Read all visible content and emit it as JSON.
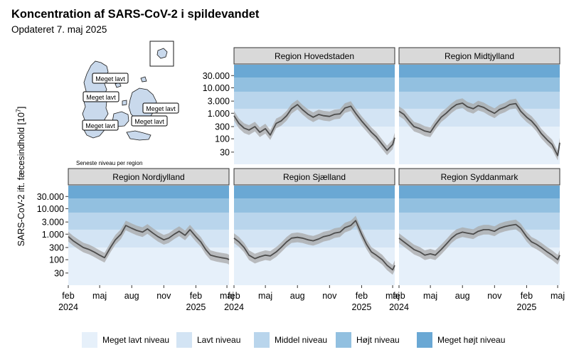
{
  "title": "Koncentration af SARS-CoV-2 i spildevandet",
  "subtitle": "Opdateret 7. maj 2025",
  "map": {
    "caption": "Seneste niveau per region",
    "labels": [
      "Meget lavt",
      "Meget lavt",
      "Meget lavt",
      "Meget lavt",
      "Meget lavt"
    ],
    "land_color": "#c9d9ec",
    "outline_color": "#1a1a1a"
  },
  "colors": {
    "levels": [
      "#e6f0fa",
      "#d3e4f4",
      "#b9d5ec",
      "#92c0e0",
      "#6aa8d4"
    ],
    "strip": "#d9d9d9",
    "line": "#4d4d4d",
    "ribbon": "#a8a8a8"
  },
  "legend": [
    "Meget lavt niveau",
    "Lavt niveau",
    "Middel niveau",
    "Højt niveau",
    "Meget højt niveau"
  ],
  "chart_data": {
    "type": "line",
    "ylabel": "SARS-CoV-2 ift. fæcesindhold [10",
    "ylabel_sup": "7",
    "ylabel_end": "]",
    "y_scale": "log",
    "ylim": [
      10,
      80000
    ],
    "yticks": [
      30,
      100,
      300,
      1000,
      3000,
      10000,
      30000
    ],
    "ytick_labels": [
      "30",
      "100",
      "300",
      "1.000",
      "3.000",
      "10.000",
      "30.000"
    ],
    "level_bands": [
      {
        "name": "Meget lavt niveau",
        "from": 10,
        "to": 300
      },
      {
        "name": "Lavt niveau",
        "from": 300,
        "to": 1500
      },
      {
        "name": "Middel niveau",
        "from": 1500,
        "to": 7000
      },
      {
        "name": "Højt niveau",
        "from": 7000,
        "to": 25000
      },
      {
        "name": "Meget højt niveau",
        "from": 25000,
        "to": 80000
      }
    ],
    "xlim": [
      "2024-02-01",
      "2025-05-07"
    ],
    "xticks": [
      {
        "date": "2024-02-01",
        "label": "feb",
        "year": "2024"
      },
      {
        "date": "2024-05-01",
        "label": "maj",
        "year": ""
      },
      {
        "date": "2024-08-01",
        "label": "aug",
        "year": ""
      },
      {
        "date": "2024-11-01",
        "label": "nov",
        "year": ""
      },
      {
        "date": "2025-02-01",
        "label": "feb",
        "year": "2025"
      },
      {
        "date": "2025-05-01",
        "label": "maj",
        "year": ""
      }
    ],
    "x": [
      "2024-02-01",
      "2024-02-15",
      "2024-03-01",
      "2024-03-15",
      "2024-04-01",
      "2024-04-15",
      "2024-05-01",
      "2024-05-15",
      "2024-06-01",
      "2024-06-15",
      "2024-07-01",
      "2024-07-15",
      "2024-08-01",
      "2024-08-15",
      "2024-09-01",
      "2024-09-15",
      "2024-10-01",
      "2024-10-15",
      "2024-11-01",
      "2024-11-15",
      "2024-12-01",
      "2024-12-15",
      "2025-01-01",
      "2025-01-15",
      "2025-02-01",
      "2025-02-15",
      "2025-03-01",
      "2025-03-15",
      "2025-04-01",
      "2025-04-15",
      "2025-05-01",
      "2025-05-07"
    ],
    "series": [
      {
        "name": "Region Hovedstaden",
        "values": [
          800,
          400,
          260,
          220,
          300,
          180,
          250,
          140,
          400,
          500,
          800,
          1500,
          2200,
          1400,
          900,
          700,
          900,
          800,
          750,
          900,
          950,
          1600,
          1900,
          1000,
          500,
          300,
          180,
          120,
          60,
          35,
          60,
          110
        ]
      },
      {
        "name": "Region Midtjylland",
        "values": [
          1200,
          900,
          500,
          300,
          250,
          200,
          180,
          350,
          700,
          1000,
          1600,
          2200,
          2500,
          1800,
          1500,
          2000,
          1700,
          1300,
          1000,
          1400,
          1700,
          2200,
          2400,
          1200,
          700,
          500,
          300,
          160,
          90,
          60,
          22,
          70
        ]
      },
      {
        "name": "Region Nordjylland",
        "values": [
          800,
          550,
          400,
          300,
          250,
          200,
          150,
          120,
          300,
          600,
          1000,
          2200,
          1700,
          1400,
          1200,
          1600,
          1100,
          800,
          600,
          700,
          1000,
          1300,
          900,
          1500,
          800,
          500,
          250,
          150,
          130,
          120,
          110,
          100
        ]
      },
      {
        "name": "Region Sjælland",
        "values": [
          700,
          500,
          300,
          150,
          110,
          130,
          150,
          140,
          200,
          300,
          500,
          700,
          750,
          700,
          600,
          550,
          650,
          800,
          900,
          1100,
          1200,
          1800,
          2200,
          3400,
          1000,
          400,
          200,
          150,
          100,
          60,
          40,
          60
        ]
      },
      {
        "name": "Region Syddanmark",
        "values": [
          700,
          500,
          350,
          250,
          200,
          150,
          170,
          150,
          250,
          400,
          700,
          1000,
          1200,
          1100,
          1000,
          1300,
          1500,
          1500,
          1300,
          1700,
          2000,
          2200,
          2400,
          1700,
          800,
          500,
          400,
          300,
          200,
          150,
          100,
          150
        ]
      }
    ]
  }
}
